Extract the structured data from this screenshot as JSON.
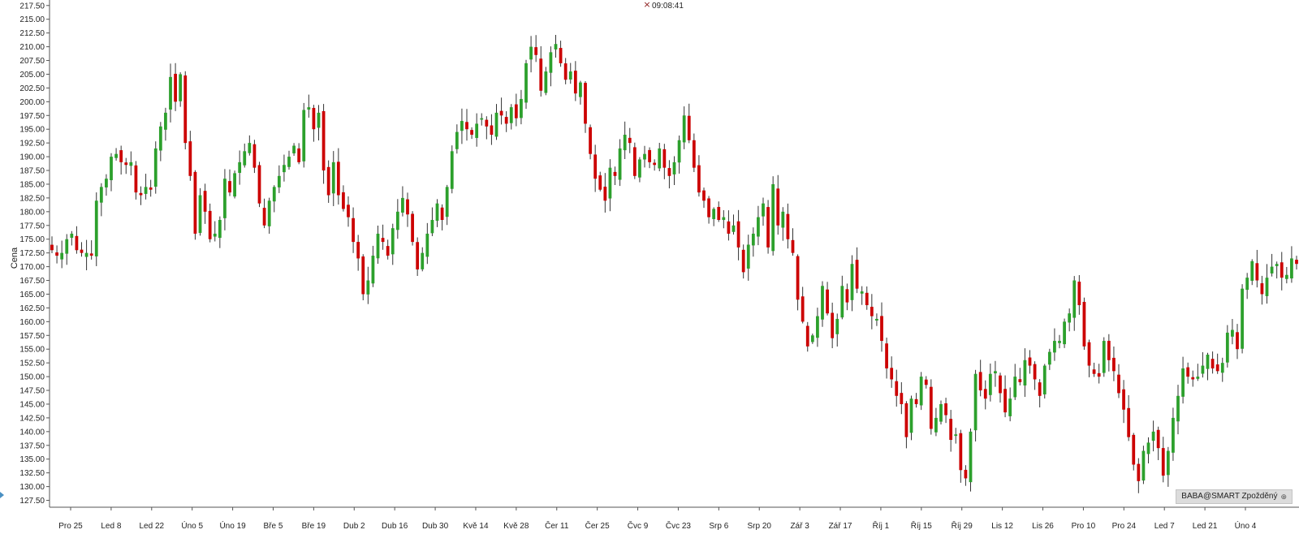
{
  "chart_data": {
    "type": "candlestick",
    "ylabel": "Cena",
    "ylim": [
      126.25,
      218.5
    ],
    "y_ticks": [
      127.5,
      130,
      132.5,
      135,
      137.5,
      140,
      142.5,
      145,
      147.5,
      150,
      152.5,
      155,
      157.5,
      160,
      162.5,
      165,
      167.5,
      170,
      172.5,
      175,
      177.5,
      180,
      182.5,
      185,
      187.5,
      190,
      192.5,
      195,
      197.5,
      200,
      202.5,
      205,
      207.5,
      210,
      212.5,
      215,
      217.5
    ],
    "x_ticks": [
      "Pro 25",
      "Led 8",
      "Led 22",
      "Úno 5",
      "Úno 19",
      "Bře 5",
      "Bře 19",
      "Dub 2",
      "Dub 16",
      "Dub 30",
      "Kvě 14",
      "Kvě 28",
      "Čer 11",
      "Čer 25",
      "Čvc 9",
      "Čvc 23",
      "Srp 6",
      "Srp 20",
      "Zář 3",
      "Zář 17",
      "Říj 1",
      "Říj 15",
      "Říj 29",
      "Lis 12",
      "Lis 26",
      "Pro 10",
      "Pro 24",
      "Led 7",
      "Led 21",
      "Úno 4"
    ],
    "closes": [
      173.0,
      172.0,
      172.5,
      175.0,
      176.0,
      173.0,
      172.5,
      172.5,
      172.0,
      182.0,
      184.5,
      186.0,
      190.0,
      190.5,
      189.0,
      188.5,
      189.0,
      183.5,
      183.0,
      184.5,
      184.0,
      191.5,
      195.5,
      198.0,
      204.5,
      200.0,
      205.0,
      192.5,
      186.5,
      176.0,
      183.0,
      180.0,
      175.0,
      176.0,
      178.5,
      186.0,
      183.5,
      187.0,
      189.0,
      191.0,
      192.5,
      188.0,
      181.5,
      177.5,
      182.0,
      184.5,
      186.5,
      188.5,
      190.0,
      192.0,
      189.0,
      198.5,
      199.0,
      195.0,
      198.0,
      187.5,
      183.0,
      189.0,
      183.0,
      180.5,
      179.0,
      174.5,
      171.5,
      165.0,
      167.5,
      172.0,
      176.0,
      174.5,
      172.0,
      177.0,
      180.0,
      182.5,
      179.5,
      174.5,
      169.5,
      172.5,
      176.0,
      178.5,
      181.5,
      178.5,
      184.5,
      191.0,
      194.5,
      196.5,
      195.0,
      194.0,
      196.0,
      197.0,
      195.5,
      194.0,
      198.0,
      197.5,
      196.0,
      199.0,
      197.0,
      200.5,
      207.0,
      210.0,
      208.5,
      202.0,
      205.5,
      209.0,
      210.5,
      207.0,
      204.0,
      205.5,
      201.5,
      203.5,
      196.0,
      190.5,
      186.0,
      184.0,
      182.0,
      188.0,
      186.5,
      191.5,
      194.0,
      192.5,
      186.5,
      189.5,
      190.5,
      189.0,
      188.5,
      191.5,
      188.0,
      186.5,
      189.0,
      193.0,
      197.5,
      193.0,
      188.0,
      183.5,
      182.0,
      179.0,
      180.5,
      178.5,
      179.0,
      176.0,
      177.5,
      173.5,
      169.0,
      174.0,
      176.0,
      179.0,
      181.5,
      173.5,
      185.0,
      177.5,
      180.0,
      175.0,
      172.5,
      164.0,
      160.0,
      155.5,
      157.5,
      161.0,
      166.5,
      161.5,
      157.0,
      160.5,
      166.5,
      163.5,
      170.5,
      166.0,
      165.5,
      163.0,
      161.0,
      160.5,
      156.5,
      151.5,
      149.5,
      146.5,
      145.0,
      139.0,
      146.0,
      145.0,
      150.0,
      148.5,
      140.5,
      142.5,
      145.0,
      143.0,
      138.5,
      139.5,
      133.0,
      131.5,
      140.0,
      150.5,
      147.5,
      146.0,
      150.5,
      151.0,
      147.0,
      143.5,
      146.0,
      150.0,
      149.0,
      153.0,
      152.0,
      149.5,
      146.5,
      152.0,
      154.5,
      156.5,
      156.5,
      160.0,
      161.5,
      167.5,
      163.0,
      155.5,
      152.0,
      150.5,
      150.0,
      156.5,
      153.0,
      151.0,
      147.0,
      144.0,
      139.0,
      134.0,
      131.0,
      136.5,
      138.0,
      140.0,
      137.0,
      132.0,
      136.5,
      142.5,
      146.5,
      151.5,
      150.0,
      149.5,
      150.0,
      152.0,
      154.0,
      151.5,
      151.0,
      152.5,
      158.0,
      158.5,
      155.0,
      166.0,
      168.0,
      171.0,
      167.5,
      165.0,
      168.0,
      170.0,
      170.5,
      168.0,
      168.5,
      171.5,
      170.5
    ],
    "time_label": "09:08:41",
    "instrument_badge": "BABA@SMART Zpožděný",
    "colors": {
      "up": "#2ca02c",
      "down": "#cc0000",
      "axis": "#555555",
      "background": "#ffffff"
    },
    "grid": false,
    "legend": "none"
  },
  "icons": {
    "close": "close-icon",
    "globe": "globe-icon"
  }
}
